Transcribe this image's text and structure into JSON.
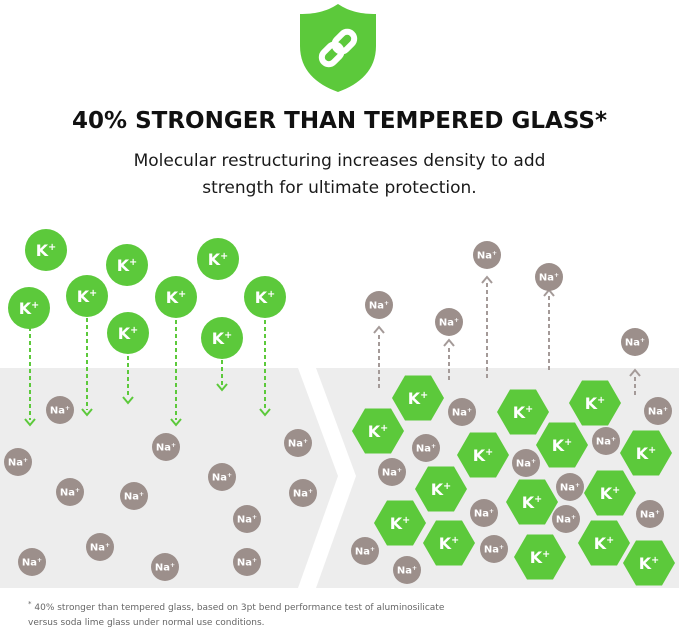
{
  "header": {
    "title": "40% STRONGER THAN TEMPERED GLASS*",
    "subtitle_line1": "Molecular restructuring increases density to add",
    "subtitle_line2": "strength for ultimate protection."
  },
  "footnote": {
    "marker": "*",
    "line1": "40% stronger than tempered glass, based on 3pt bend performance test of aluminosilicate",
    "line2": "versus soda lime glass under normal use conditions."
  },
  "labels": {
    "potassium": "K",
    "potassium_charge": "+",
    "sodium": "Na",
    "sodium_charge": "+"
  },
  "colors": {
    "green": "#5cc93b",
    "grey_ion": "#9c8f8b",
    "panel": "#ededed",
    "arrow_green": "#5cc93b",
    "arrow_grey": "#a49a98"
  },
  "icons": {
    "top": "shield-link-icon"
  }
}
